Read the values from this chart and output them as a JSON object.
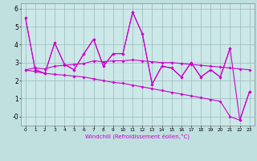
{
  "xlabel": "Windchill (Refroidissement éolien,°C)",
  "x": [
    0,
    1,
    2,
    3,
    4,
    5,
    6,
    7,
    8,
    9,
    10,
    11,
    12,
    13,
    14,
    15,
    16,
    17,
    18,
    19,
    20,
    21,
    22,
    23
  ],
  "line_jagged": [
    5.5,
    2.6,
    2.4,
    4.1,
    2.9,
    2.6,
    3.5,
    4.3,
    2.8,
    3.5,
    3.5,
    5.8,
    4.6,
    1.8,
    2.8,
    2.7,
    2.2,
    3.0,
    2.2,
    2.6,
    2.2,
    3.8,
    null,
    null
  ],
  "line_full": [
    5.5,
    2.6,
    2.4,
    4.1,
    2.9,
    2.6,
    3.5,
    4.3,
    2.8,
    3.5,
    3.5,
    5.8,
    4.6,
    1.8,
    2.8,
    2.7,
    2.2,
    3.0,
    2.2,
    2.6,
    2.2,
    3.8,
    -0.2,
    1.4
  ],
  "line_avg": [
    2.6,
    2.7,
    2.65,
    2.8,
    2.85,
    2.9,
    2.95,
    3.1,
    3.05,
    3.1,
    3.1,
    3.15,
    3.1,
    3.05,
    3.0,
    3.0,
    2.95,
    2.9,
    2.85,
    2.8,
    2.75,
    2.7,
    2.65,
    2.6
  ],
  "line_diag": [
    2.6,
    2.5,
    2.4,
    2.35,
    2.3,
    2.25,
    2.2,
    2.1,
    2.0,
    1.9,
    1.85,
    1.75,
    1.65,
    1.55,
    1.45,
    1.35,
    1.25,
    1.15,
    1.05,
    0.95,
    0.85,
    0.0,
    -0.2,
    1.4
  ],
  "ylim": [
    -0.5,
    6.3
  ],
  "yticks": [
    0,
    1,
    2,
    3,
    4,
    5,
    6
  ],
  "ytick_labels": [
    "-0",
    "1",
    "2",
    "3",
    "4",
    "5",
    "6"
  ],
  "line_color": "#cc00cc",
  "bg_color": "#c0e0e0",
  "plot_bg": "#cce8e8",
  "grid_color": "#99bbbb"
}
